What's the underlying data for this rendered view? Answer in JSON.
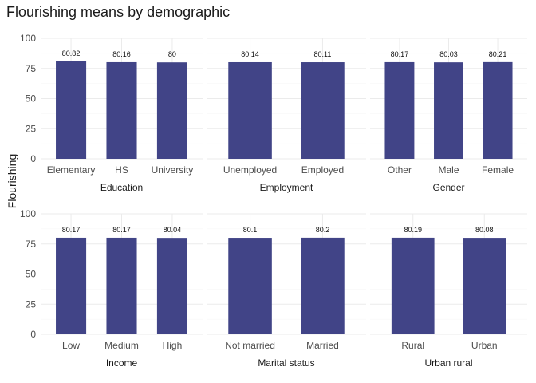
{
  "title": "Flourishing means by demographic",
  "ylabel": "Flourishing",
  "colors": {
    "bar": "#414487",
    "grid": "#ebebeb",
    "text": "#4d4d4d",
    "label": "#1a1a1a"
  },
  "chart_data": {
    "type": "bar",
    "title": "Flourishing means by demographic",
    "ylabel": "Flourishing",
    "ylim": [
      0,
      100
    ],
    "yticks": [
      0,
      25,
      50,
      75,
      100
    ],
    "grid": true,
    "facets": [
      {
        "label": "Education",
        "categories": [
          "Elementary",
          "HS",
          "University"
        ],
        "values": [
          80.82,
          80.16,
          80
        ]
      },
      {
        "label": "Employment",
        "categories": [
          "Unemployed",
          "Employed"
        ],
        "values": [
          80.14,
          80.11
        ]
      },
      {
        "label": "Gender",
        "categories": [
          "Other",
          "Male",
          "Female"
        ],
        "values": [
          80.17,
          80.03,
          80.21
        ]
      },
      {
        "label": "Income",
        "categories": [
          "Low",
          "Medium",
          "High"
        ],
        "values": [
          80.17,
          80.17,
          80.04
        ]
      },
      {
        "label": "Marital status",
        "categories": [
          "Not married",
          "Married"
        ],
        "values": [
          80.1,
          80.2
        ]
      },
      {
        "label": "Urban rural",
        "categories": [
          "Rural",
          "Urban"
        ],
        "values": [
          80.19,
          80.08
        ]
      }
    ]
  }
}
